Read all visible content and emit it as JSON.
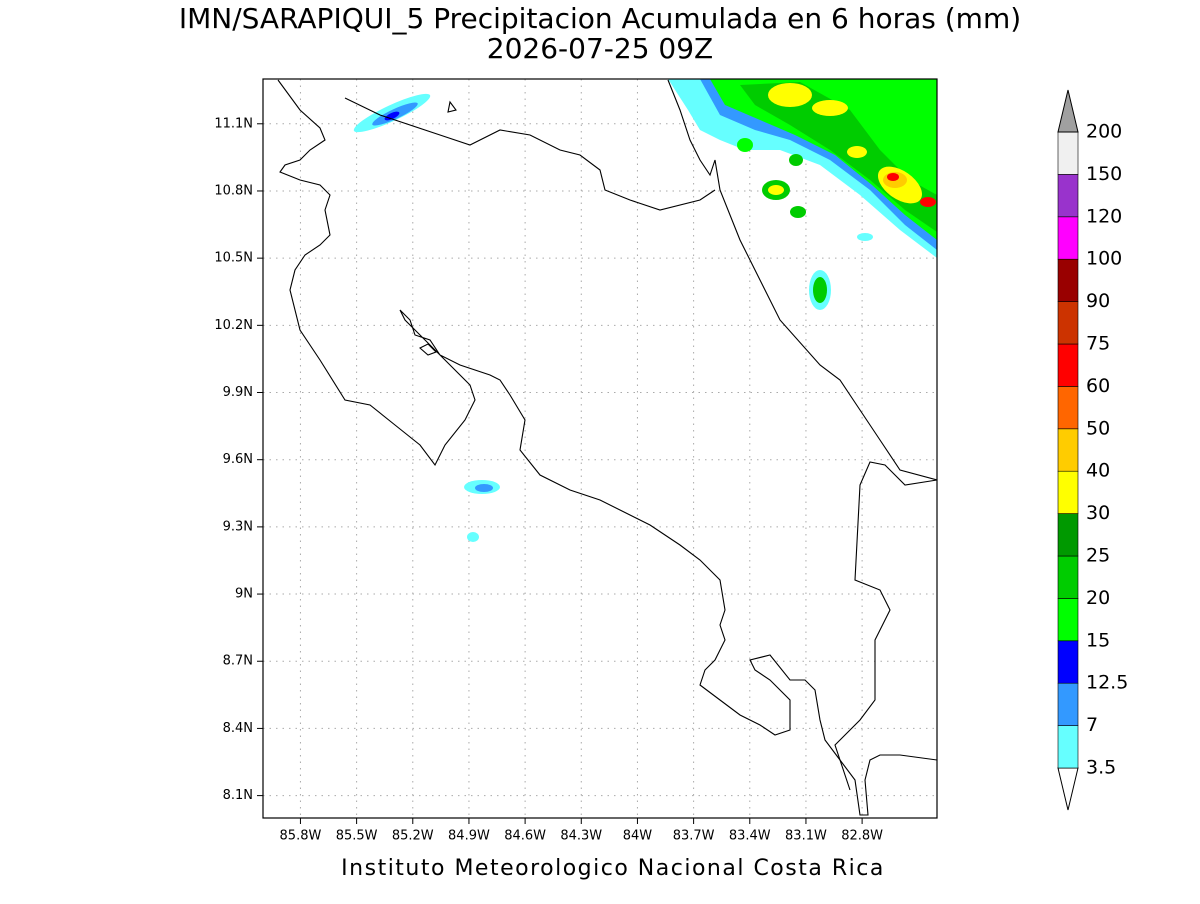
{
  "title": "IMN/SARAPIQUI_5 Precipitacion Acumulada en 6 horas (mm)",
  "subtitle": "2026-07-25 09Z",
  "footer": "Instituto Meteorologico Nacional Costa Rica",
  "map": {
    "xlim": [
      -86.0,
      -82.4
    ],
    "ylim": [
      8.0,
      11.3
    ],
    "xticks": [
      {
        "value": -85.8,
        "label": "85.8W"
      },
      {
        "value": -85.5,
        "label": "85.5W"
      },
      {
        "value": -85.2,
        "label": "85.2W"
      },
      {
        "value": -84.9,
        "label": "84.9W"
      },
      {
        "value": -84.6,
        "label": "84.6W"
      },
      {
        "value": -84.3,
        "label": "84.3W"
      },
      {
        "value": -84.0,
        "label": "84W"
      },
      {
        "value": -83.7,
        "label": "83.7W"
      },
      {
        "value": -83.4,
        "label": "83.4W"
      },
      {
        "value": -83.1,
        "label": "83.1W"
      },
      {
        "value": -82.8,
        "label": "82.8W"
      }
    ],
    "yticks": [
      {
        "value": 11.1,
        "label": "11.1N"
      },
      {
        "value": 10.8,
        "label": "10.8N"
      },
      {
        "value": 10.5,
        "label": "10.5N"
      },
      {
        "value": 10.2,
        "label": "10.2N"
      },
      {
        "value": 9.9,
        "label": "9.9N"
      },
      {
        "value": 9.6,
        "label": "9.6N"
      },
      {
        "value": 9.3,
        "label": "9.3N"
      },
      {
        "value": 9.0,
        "label": "9N"
      },
      {
        "value": 8.7,
        "label": "8.7N"
      },
      {
        "value": 8.4,
        "label": "8.4N"
      },
      {
        "value": 8.1,
        "label": "8.1N"
      }
    ],
    "grid": true
  },
  "colorbar": {
    "levels": [
      3.5,
      7,
      12.5,
      15,
      20,
      25,
      30,
      40,
      50,
      60,
      75,
      90,
      100,
      120,
      150,
      200
    ],
    "colors": [
      "#ffffff",
      "#66ffff",
      "#3399ff",
      "#0000ff",
      "#00ff00",
      "#00cc00",
      "#009900",
      "#ffff00",
      "#ffcc00",
      "#ff6600",
      "#ff0000",
      "#cc3300",
      "#990000",
      "#ff00ff",
      "#9933cc",
      "#f0f0f0",
      "#a0a0a0"
    ]
  }
}
